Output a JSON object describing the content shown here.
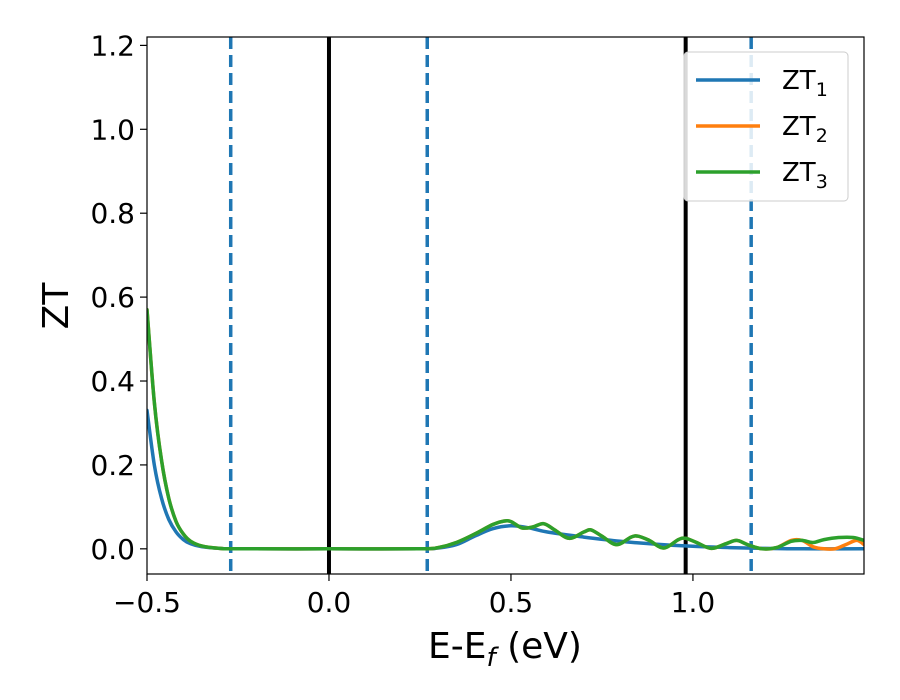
{
  "chart_data": {
    "type": "line",
    "xlabel": "E-E",
    "xlabel_sub": "f",
    "xlabel_unit": " (eV)",
    "ylabel": "ZT",
    "xlim": [
      -0.5,
      1.47
    ],
    "ylim": [
      -0.06,
      1.22
    ],
    "xticks": [
      -0.5,
      0.0,
      0.5,
      1.0
    ],
    "xtick_labels": [
      "−0.5",
      "0.0",
      "0.5",
      "1.0"
    ],
    "yticks": [
      0.0,
      0.2,
      0.4,
      0.6,
      0.8,
      1.0,
      1.2
    ],
    "ytick_labels": [
      "0.0",
      "0.2",
      "0.4",
      "0.6",
      "0.8",
      "1.0",
      "1.2"
    ],
    "grid": false,
    "legend_position": "top-right",
    "vlines": [
      {
        "x": 0.0,
        "style": "solid",
        "color": "#000000"
      },
      {
        "x": 0.98,
        "style": "solid",
        "color": "#000000"
      },
      {
        "x": -0.27,
        "style": "dashed",
        "color": "#1f77b4"
      },
      {
        "x": 0.27,
        "style": "dashed",
        "color": "#1f77b4"
      },
      {
        "x": 1.16,
        "style": "dashed",
        "color": "#1f77b4"
      }
    ],
    "series": [
      {
        "name": "ZT",
        "name_sub": "1",
        "color": "#1f77b4",
        "points": [
          [
            -0.5,
            0.33
          ],
          [
            -0.48,
            0.2
          ],
          [
            -0.46,
            0.12
          ],
          [
            -0.44,
            0.07
          ],
          [
            -0.42,
            0.04
          ],
          [
            -0.4,
            0.022
          ],
          [
            -0.38,
            0.012
          ],
          [
            -0.35,
            0.005
          ],
          [
            -0.3,
            0.001
          ],
          [
            -0.25,
            0.0
          ],
          [
            0.0,
            0.0
          ],
          [
            0.25,
            0.0
          ],
          [
            0.3,
            0.002
          ],
          [
            0.35,
            0.01
          ],
          [
            0.4,
            0.03
          ],
          [
            0.45,
            0.048
          ],
          [
            0.5,
            0.055
          ],
          [
            0.55,
            0.05
          ],
          [
            0.6,
            0.04
          ],
          [
            0.7,
            0.028
          ],
          [
            0.8,
            0.018
          ],
          [
            0.9,
            0.011
          ],
          [
            1.0,
            0.006
          ],
          [
            1.1,
            0.003
          ],
          [
            1.2,
            0.001
          ],
          [
            1.3,
            0.0
          ],
          [
            1.47,
            0.0
          ]
        ]
      },
      {
        "name": "ZT",
        "name_sub": "2",
        "color": "#ff7f0e",
        "points": [
          [
            -0.5,
            0.57
          ],
          [
            -0.48,
            0.35
          ],
          [
            -0.46,
            0.21
          ],
          [
            -0.44,
            0.12
          ],
          [
            -0.42,
            0.065
          ],
          [
            -0.4,
            0.035
          ],
          [
            -0.38,
            0.018
          ],
          [
            -0.35,
            0.007
          ],
          [
            -0.3,
            0.001
          ],
          [
            -0.25,
            0.0
          ],
          [
            0.0,
            0.0
          ],
          [
            0.25,
            0.0
          ],
          [
            0.3,
            0.003
          ],
          [
            0.35,
            0.015
          ],
          [
            0.4,
            0.035
          ],
          [
            0.45,
            0.058
          ],
          [
            0.48,
            0.066
          ],
          [
            0.5,
            0.065
          ],
          [
            0.53,
            0.05
          ],
          [
            0.56,
            0.052
          ],
          [
            0.59,
            0.06
          ],
          [
            0.62,
            0.045
          ],
          [
            0.66,
            0.025
          ],
          [
            0.7,
            0.04
          ],
          [
            0.72,
            0.045
          ],
          [
            0.75,
            0.03
          ],
          [
            0.79,
            0.01
          ],
          [
            0.83,
            0.028
          ],
          [
            0.85,
            0.03
          ],
          [
            0.88,
            0.02
          ],
          [
            0.92,
            0.002
          ],
          [
            0.96,
            0.022
          ],
          [
            0.98,
            0.025
          ],
          [
            1.01,
            0.015
          ],
          [
            1.05,
            0.001
          ],
          [
            1.09,
            0.012
          ],
          [
            1.12,
            0.02
          ],
          [
            1.15,
            0.01
          ],
          [
            1.19,
            0.0
          ],
          [
            1.23,
            0.003
          ],
          [
            1.27,
            0.02
          ],
          [
            1.3,
            0.02
          ],
          [
            1.33,
            0.005
          ],
          [
            1.36,
            0.0
          ],
          [
            1.39,
            0.0
          ],
          [
            1.42,
            0.01
          ],
          [
            1.45,
            0.02
          ],
          [
            1.47,
            0.01
          ]
        ]
      },
      {
        "name": "ZT",
        "name_sub": "3",
        "color": "#2ca02c",
        "points": [
          [
            -0.5,
            0.57
          ],
          [
            -0.48,
            0.35
          ],
          [
            -0.46,
            0.21
          ],
          [
            -0.44,
            0.12
          ],
          [
            -0.42,
            0.065
          ],
          [
            -0.4,
            0.035
          ],
          [
            -0.38,
            0.018
          ],
          [
            -0.35,
            0.007
          ],
          [
            -0.3,
            0.001
          ],
          [
            -0.25,
            0.0
          ],
          [
            0.0,
            0.0
          ],
          [
            0.25,
            0.0
          ],
          [
            0.3,
            0.003
          ],
          [
            0.35,
            0.015
          ],
          [
            0.4,
            0.035
          ],
          [
            0.45,
            0.058
          ],
          [
            0.48,
            0.066
          ],
          [
            0.5,
            0.065
          ],
          [
            0.53,
            0.05
          ],
          [
            0.56,
            0.052
          ],
          [
            0.59,
            0.06
          ],
          [
            0.62,
            0.045
          ],
          [
            0.66,
            0.025
          ],
          [
            0.7,
            0.04
          ],
          [
            0.72,
            0.045
          ],
          [
            0.75,
            0.03
          ],
          [
            0.79,
            0.01
          ],
          [
            0.83,
            0.028
          ],
          [
            0.85,
            0.03
          ],
          [
            0.88,
            0.02
          ],
          [
            0.92,
            0.002
          ],
          [
            0.96,
            0.022
          ],
          [
            0.98,
            0.025
          ],
          [
            1.01,
            0.015
          ],
          [
            1.05,
            0.001
          ],
          [
            1.09,
            0.012
          ],
          [
            1.12,
            0.02
          ],
          [
            1.15,
            0.01
          ],
          [
            1.19,
            0.0
          ],
          [
            1.23,
            0.003
          ],
          [
            1.27,
            0.018
          ],
          [
            1.3,
            0.02
          ],
          [
            1.33,
            0.015
          ],
          [
            1.36,
            0.022
          ],
          [
            1.4,
            0.027
          ],
          [
            1.44,
            0.027
          ],
          [
            1.47,
            0.02
          ]
        ]
      }
    ]
  }
}
